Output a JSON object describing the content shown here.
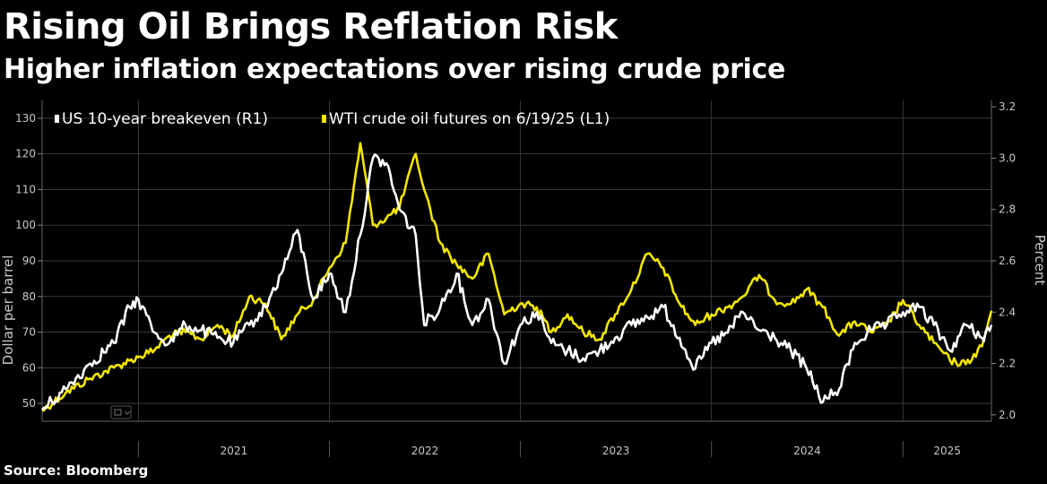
{
  "title": "Rising Oil Brings Reflation Risk",
  "subtitle": "Higher inflation expectations over rising crude price",
  "source": "Source: Bloomberg",
  "colors": {
    "background": "#000000",
    "breakeven": "#ffffff",
    "wti": "#f2e600",
    "grid": "#3a3a3a",
    "axis_text": "#c8c8c8"
  },
  "chart_data": {
    "type": "line",
    "x_start": "2020-07-01",
    "x_end": "2025-06-19",
    "x_ticks": [
      "2021",
      "2022",
      "2023",
      "2024",
      "2025"
    ],
    "left_axis": {
      "label": "Dollar per barrel",
      "range": [
        45,
        135
      ],
      "ticks": [
        "50",
        "60",
        "70",
        "80",
        "90",
        "100",
        "110",
        "120",
        "130"
      ]
    },
    "right_axis": {
      "label": "Percent",
      "range": [
        1.975,
        3.225
      ],
      "ticks": [
        "2.0",
        "2.2",
        "2.4",
        "2.6",
        "2.8",
        "3.0",
        "3.2"
      ]
    },
    "legend": {
      "placement": "top-left"
    },
    "grid": true,
    "series": [
      {
        "name": "US 10-year breakeven (R1)",
        "axis": "right",
        "points": [
          [
            "2020-07-01",
            2.02
          ],
          [
            "2020-08-15",
            2.1
          ],
          [
            "2020-10-01",
            2.2
          ],
          [
            "2020-11-15",
            2.28
          ],
          [
            "2020-12-15",
            2.42
          ],
          [
            "2021-01-01",
            2.45
          ],
          [
            "2021-02-01",
            2.32
          ],
          [
            "2021-03-01",
            2.28
          ],
          [
            "2021-04-01",
            2.35
          ],
          [
            "2021-05-01",
            2.33
          ],
          [
            "2021-06-01",
            2.3
          ],
          [
            "2021-07-01",
            2.28
          ],
          [
            "2021-08-01",
            2.35
          ],
          [
            "2021-09-01",
            2.42
          ],
          [
            "2021-10-01",
            2.55
          ],
          [
            "2021-11-01",
            2.72
          ],
          [
            "2021-12-01",
            2.45
          ],
          [
            "2022-01-01",
            2.55
          ],
          [
            "2022-02-01",
            2.4
          ],
          [
            "2022-03-01",
            2.7
          ],
          [
            "2022-03-25",
            3.0
          ],
          [
            "2022-04-20",
            2.98
          ],
          [
            "2022-05-15",
            2.8
          ],
          [
            "2022-06-15",
            2.7
          ],
          [
            "2022-07-01",
            2.35
          ],
          [
            "2022-08-01",
            2.42
          ],
          [
            "2022-09-01",
            2.55
          ],
          [
            "2022-10-01",
            2.35
          ],
          [
            "2022-11-01",
            2.45
          ],
          [
            "2022-12-01",
            2.2
          ],
          [
            "2023-01-01",
            2.35
          ],
          [
            "2023-02-01",
            2.4
          ],
          [
            "2023-03-01",
            2.28
          ],
          [
            "2023-04-01",
            2.25
          ],
          [
            "2023-05-01",
            2.22
          ],
          [
            "2023-06-01",
            2.25
          ],
          [
            "2023-07-01",
            2.3
          ],
          [
            "2023-08-01",
            2.35
          ],
          [
            "2023-09-01",
            2.38
          ],
          [
            "2023-10-01",
            2.42
          ],
          [
            "2023-11-01",
            2.3
          ],
          [
            "2023-12-01",
            2.18
          ],
          [
            "2024-01-01",
            2.28
          ],
          [
            "2024-02-01",
            2.32
          ],
          [
            "2024-03-01",
            2.4
          ],
          [
            "2024-04-01",
            2.33
          ],
          [
            "2024-05-01",
            2.3
          ],
          [
            "2024-06-01",
            2.25
          ],
          [
            "2024-07-01",
            2.18
          ],
          [
            "2024-08-01",
            2.05
          ],
          [
            "2024-09-01",
            2.1
          ],
          [
            "2024-10-01",
            2.28
          ],
          [
            "2024-11-01",
            2.33
          ],
          [
            "2024-12-01",
            2.35
          ],
          [
            "2025-01-01",
            2.4
          ],
          [
            "2025-02-01",
            2.42
          ],
          [
            "2025-03-01",
            2.35
          ],
          [
            "2025-04-01",
            2.25
          ],
          [
            "2025-05-01",
            2.35
          ],
          [
            "2025-06-01",
            2.3
          ],
          [
            "2025-06-19",
            2.35
          ]
        ]
      },
      {
        "name": "WTI crude oil futures on 6/19/25 (L1)",
        "axis": "left",
        "points": [
          [
            "2020-07-01",
            48
          ],
          [
            "2020-08-15",
            53
          ],
          [
            "2020-10-01",
            57
          ],
          [
            "2020-11-15",
            60
          ],
          [
            "2020-12-15",
            62
          ],
          [
            "2021-01-01",
            63
          ],
          [
            "2021-02-01",
            65
          ],
          [
            "2021-03-01",
            69
          ],
          [
            "2021-04-01",
            70
          ],
          [
            "2021-05-01",
            68
          ],
          [
            "2021-06-01",
            72
          ],
          [
            "2021-07-01",
            69
          ],
          [
            "2021-08-01",
            80
          ],
          [
            "2021-09-01",
            78
          ],
          [
            "2021-10-01",
            68
          ],
          [
            "2021-11-01",
            75
          ],
          [
            "2021-12-01",
            79
          ],
          [
            "2022-01-01",
            88
          ],
          [
            "2022-02-01",
            95
          ],
          [
            "2022-03-01",
            123
          ],
          [
            "2022-03-25",
            100
          ],
          [
            "2022-04-20",
            102
          ],
          [
            "2022-05-15",
            105
          ],
          [
            "2022-06-15",
            120
          ],
          [
            "2022-07-01",
            110
          ],
          [
            "2022-08-01",
            95
          ],
          [
            "2022-09-01",
            89
          ],
          [
            "2022-10-01",
            85
          ],
          [
            "2022-11-01",
            92
          ],
          [
            "2022-12-01",
            75
          ],
          [
            "2023-01-01",
            78
          ],
          [
            "2023-02-01",
            77
          ],
          [
            "2023-03-01",
            70
          ],
          [
            "2023-04-01",
            75
          ],
          [
            "2023-05-01",
            70
          ],
          [
            "2023-06-01",
            68
          ],
          [
            "2023-07-01",
            75
          ],
          [
            "2023-08-01",
            82
          ],
          [
            "2023-09-01",
            92
          ],
          [
            "2023-10-01",
            88
          ],
          [
            "2023-11-01",
            78
          ],
          [
            "2023-12-01",
            72
          ],
          [
            "2024-01-01",
            75
          ],
          [
            "2024-02-01",
            77
          ],
          [
            "2024-03-01",
            80
          ],
          [
            "2024-04-01",
            86
          ],
          [
            "2024-05-01",
            79
          ],
          [
            "2024-06-01",
            78
          ],
          [
            "2024-07-01",
            82
          ],
          [
            "2024-08-01",
            77
          ],
          [
            "2024-09-01",
            69
          ],
          [
            "2024-10-01",
            73
          ],
          [
            "2024-11-01",
            70
          ],
          [
            "2024-12-01",
            72
          ],
          [
            "2025-01-01",
            79
          ],
          [
            "2025-02-01",
            72
          ],
          [
            "2025-03-01",
            67
          ],
          [
            "2025-04-01",
            62
          ],
          [
            "2025-05-01",
            61
          ],
          [
            "2025-06-01",
            66
          ],
          [
            "2025-06-19",
            76
          ]
        ]
      }
    ]
  }
}
